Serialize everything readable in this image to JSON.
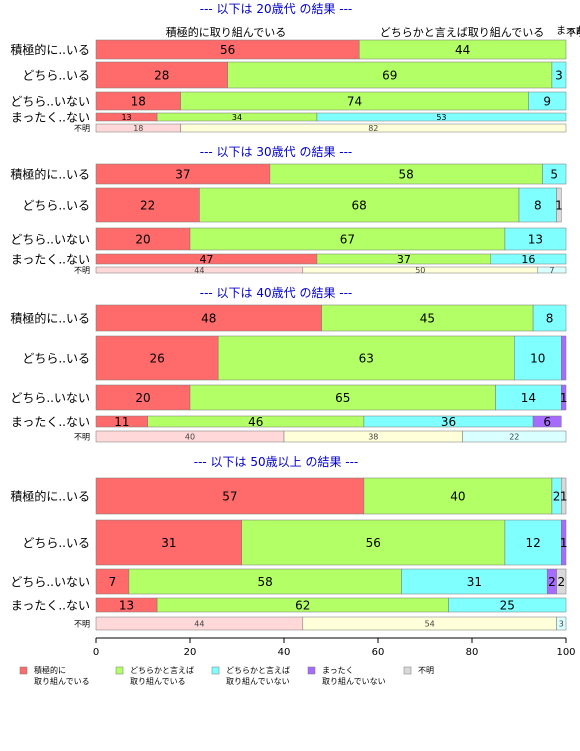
{
  "chart_data": {
    "type": "bar",
    "orientation": "horizontal",
    "stacked": true,
    "xlim": [
      0,
      100
    ],
    "x_ticks": [
      0,
      20,
      40,
      60,
      80,
      100
    ],
    "colors": {
      "s0": "#ff6b6b",
      "s1": "#b3ff66",
      "s2": "#80ffff",
      "s3": "#a66bff",
      "s4": "#d9d9d9",
      "s0_light": "#ffd9d9",
      "s1_light": "#ffffd9",
      "s2_light": "#d9ffff",
      "title": "#0000cc"
    },
    "legend": {
      "placement": "bottom",
      "items": [
        {
          "key": "s0",
          "label_lines": [
            "積極的に",
            "取り組んでいる"
          ]
        },
        {
          "key": "s1",
          "label_lines": [
            "どちらかと言えば",
            "取り組んでいる"
          ]
        },
        {
          "key": "s2",
          "label_lines": [
            "どちらかと言えば",
            "取り組んでいない"
          ]
        },
        {
          "key": "s3",
          "label_lines": [
            "まったく",
            "取り組んでいない"
          ]
        },
        {
          "key": "s4",
          "label_lines": [
            "不明"
          ]
        }
      ]
    },
    "panels": [
      {
        "title": "--- 以下は 20歳代 の結果 ---",
        "header_labels": [
          "積極的に取り組んでいる",
          "どちらかと言えば取り組んでいる",
          "まったく",
          "不明"
        ],
        "rows": [
          {
            "label": "積極的に..いる",
            "segments": [
              {
                "key": "s0",
                "value": 56,
                "label": "56"
              },
              {
                "key": "s1",
                "value": 44,
                "label": "44"
              }
            ]
          },
          {
            "label": "どちら..いる",
            "segments": [
              {
                "key": "s0",
                "value": 28,
                "label": "28"
              },
              {
                "key": "s1",
                "value": 69,
                "label": "69"
              },
              {
                "key": "s2",
                "value": 3,
                "label": "3"
              }
            ]
          },
          {
            "label": "どちら..いない",
            "segments": [
              {
                "key": "s0",
                "value": 18,
                "label": "18"
              },
              {
                "key": "s1",
                "value": 74,
                "label": "74"
              },
              {
                "key": "s2",
                "value": 9,
                "label": "9"
              }
            ]
          },
          {
            "label": "まったく..ない",
            "segments": [
              {
                "key": "s0",
                "value": 13,
                "label": "13"
              },
              {
                "key": "s1",
                "value": 34,
                "label": "34"
              },
              {
                "key": "s2",
                "value": 53,
                "label": "53"
              }
            ]
          },
          {
            "label": "不明",
            "faded": true,
            "segments": [
              {
                "key": "s0",
                "value": 18,
                "label": "18"
              },
              {
                "key": "s1",
                "value": 82,
                "label": "82"
              }
            ]
          }
        ]
      },
      {
        "title": "--- 以下は 30歳代 の結果 ---",
        "rows": [
          {
            "label": "積極的に..いる",
            "segments": [
              {
                "key": "s0",
                "value": 37,
                "label": "37"
              },
              {
                "key": "s1",
                "value": 58,
                "label": "58"
              },
              {
                "key": "s2",
                "value": 5,
                "label": "5"
              }
            ]
          },
          {
            "label": "どちら..いる",
            "segments": [
              {
                "key": "s0",
                "value": 22,
                "label": "22"
              },
              {
                "key": "s1",
                "value": 68,
                "label": "68"
              },
              {
                "key": "s2",
                "value": 8,
                "label": "8"
              },
              {
                "key": "s4",
                "value": 1,
                "label": "1"
              }
            ]
          },
          {
            "label": "どちら..いない",
            "segments": [
              {
                "key": "s0",
                "value": 20,
                "label": "20"
              },
              {
                "key": "s1",
                "value": 67,
                "label": "67"
              },
              {
                "key": "s2",
                "value": 13,
                "label": "13"
              }
            ]
          },
          {
            "label": "まったく..ない",
            "segments": [
              {
                "key": "s0",
                "value": 47,
                "label": "47"
              },
              {
                "key": "s1",
                "value": 37,
                "label": "37"
              },
              {
                "key": "s2",
                "value": 16,
                "label": "16"
              }
            ]
          },
          {
            "label": "不明",
            "faded": true,
            "segments": [
              {
                "key": "s0",
                "value": 44,
                "label": "44"
              },
              {
                "key": "s1",
                "value": 50,
                "label": "50"
              },
              {
                "key": "s2",
                "value": 7,
                "label": "7"
              }
            ]
          }
        ]
      },
      {
        "title": "--- 以下は 40歳代 の結果 ---",
        "rows": [
          {
            "label": "積極的に..いる",
            "segments": [
              {
                "key": "s0",
                "value": 48,
                "label": "48"
              },
              {
                "key": "s1",
                "value": 45,
                "label": "45"
              },
              {
                "key": "s2",
                "value": 8,
                "label": "8"
              }
            ]
          },
          {
            "label": "どちら..いる",
            "segments": [
              {
                "key": "s0",
                "value": 26,
                "label": "26"
              },
              {
                "key": "s1",
                "value": 63,
                "label": "63"
              },
              {
                "key": "s2",
                "value": 10,
                "label": "10"
              },
              {
                "key": "s3",
                "value": 1,
                "label": ""
              }
            ]
          },
          {
            "label": "どちら..いない",
            "segments": [
              {
                "key": "s0",
                "value": 20,
                "label": "20"
              },
              {
                "key": "s1",
                "value": 65,
                "label": "65"
              },
              {
                "key": "s2",
                "value": 14,
                "label": "14"
              },
              {
                "key": "s3",
                "value": 1,
                "label": "1"
              }
            ]
          },
          {
            "label": "まったく..ない",
            "segments": [
              {
                "key": "s0",
                "value": 11,
                "label": "11"
              },
              {
                "key": "s1",
                "value": 46,
                "label": "46"
              },
              {
                "key": "s2",
                "value": 36,
                "label": "36"
              },
              {
                "key": "s3",
                "value": 6,
                "label": "6"
              }
            ]
          },
          {
            "label": "不明",
            "faded": true,
            "segments": [
              {
                "key": "s0",
                "value": 40,
                "label": "40"
              },
              {
                "key": "s1",
                "value": 38,
                "label": "38"
              },
              {
                "key": "s2",
                "value": 22,
                "label": "22"
              }
            ]
          }
        ]
      },
      {
        "title": "--- 以下は 50歳以上 の結果 ---",
        "rows": [
          {
            "label": "積極的に..いる",
            "segments": [
              {
                "key": "s0",
                "value": 57,
                "label": "57"
              },
              {
                "key": "s1",
                "value": 40,
                "label": "40"
              },
              {
                "key": "s2",
                "value": 2,
                "label": "2"
              },
              {
                "key": "s4",
                "value": 1,
                "label": "1"
              }
            ]
          },
          {
            "label": "どちら..いる",
            "segments": [
              {
                "key": "s0",
                "value": 31,
                "label": "31"
              },
              {
                "key": "s1",
                "value": 56,
                "label": "56"
              },
              {
                "key": "s2",
                "value": 12,
                "label": "12"
              },
              {
                "key": "s3",
                "value": 1,
                "label": "1"
              }
            ]
          },
          {
            "label": "どちら..いない",
            "segments": [
              {
                "key": "s0",
                "value": 7,
                "label": "7"
              },
              {
                "key": "s1",
                "value": 58,
                "label": "58"
              },
              {
                "key": "s2",
                "value": 31,
                "label": "31"
              },
              {
                "key": "s3",
                "value": 2,
                "label": "2"
              },
              {
                "key": "s4",
                "value": 2,
                "label": "2"
              }
            ]
          },
          {
            "label": "まったく..ない",
            "segments": [
              {
                "key": "s0",
                "value": 13,
                "label": "13"
              },
              {
                "key": "s1",
                "value": 62,
                "label": "62"
              },
              {
                "key": "s2",
                "value": 25,
                "label": "25"
              }
            ]
          },
          {
            "label": "不明",
            "faded": true,
            "segments": [
              {
                "key": "s0",
                "value": 44,
                "label": "44"
              },
              {
                "key": "s1",
                "value": 54,
                "label": "54"
              },
              {
                "key": "s2",
                "value": 3,
                "label": "3"
              }
            ]
          }
        ]
      }
    ]
  }
}
